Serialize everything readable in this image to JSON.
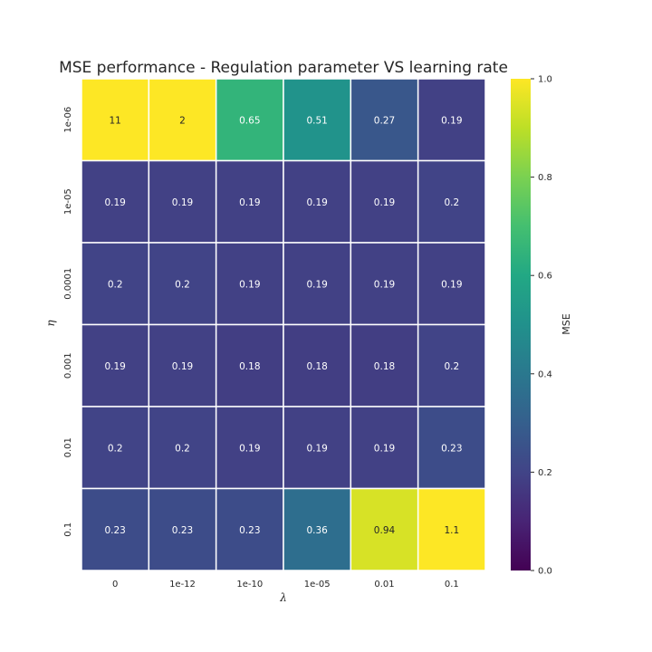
{
  "chart_data": {
    "type": "heatmap",
    "title": "MSE performance - Regulation parameter VS learning rate",
    "xlabel": "λ",
    "ylabel": "η",
    "x_categories": [
      "0",
      "1e-12",
      "1e-10",
      "1e-05",
      "0.01",
      "0.1"
    ],
    "y_categories": [
      "1e-06",
      "1e-05",
      "0.0001",
      "0.001",
      "0.01",
      "0.1"
    ],
    "values": [
      [
        11,
        2,
        0.65,
        0.51,
        0.27,
        0.19
      ],
      [
        0.19,
        0.19,
        0.19,
        0.19,
        0.19,
        0.2
      ],
      [
        0.2,
        0.2,
        0.19,
        0.19,
        0.19,
        0.19
      ],
      [
        0.19,
        0.19,
        0.18,
        0.18,
        0.18,
        0.2
      ],
      [
        0.2,
        0.2,
        0.19,
        0.19,
        0.19,
        0.23
      ],
      [
        0.23,
        0.23,
        0.23,
        0.36,
        0.94,
        1.1
      ]
    ],
    "value_labels": [
      [
        "11",
        "2",
        "0.65",
        "0.51",
        "0.27",
        "0.19"
      ],
      [
        "0.19",
        "0.19",
        "0.19",
        "0.19",
        "0.19",
        "0.2"
      ],
      [
        "0.2",
        "0.2",
        "0.19",
        "0.19",
        "0.19",
        "0.19"
      ],
      [
        "0.19",
        "0.19",
        "0.18",
        "0.18",
        "0.18",
        "0.2"
      ],
      [
        "0.2",
        "0.2",
        "0.19",
        "0.19",
        "0.19",
        "0.23"
      ],
      [
        "0.23",
        "0.23",
        "0.23",
        "0.36",
        "0.94",
        "1.1"
      ]
    ],
    "colormap": "viridis",
    "vmin": 0.0,
    "vmax": 1.0,
    "colorbar": {
      "label": "MSE",
      "ticks": [
        0.0,
        0.2,
        0.4,
        0.6,
        0.8,
        1.0
      ],
      "tick_labels": [
        "0.0",
        "0.2",
        "0.4",
        "0.6",
        "0.8",
        "1.0"
      ]
    },
    "grid": false,
    "cell_separator_color": "#ffffff"
  }
}
